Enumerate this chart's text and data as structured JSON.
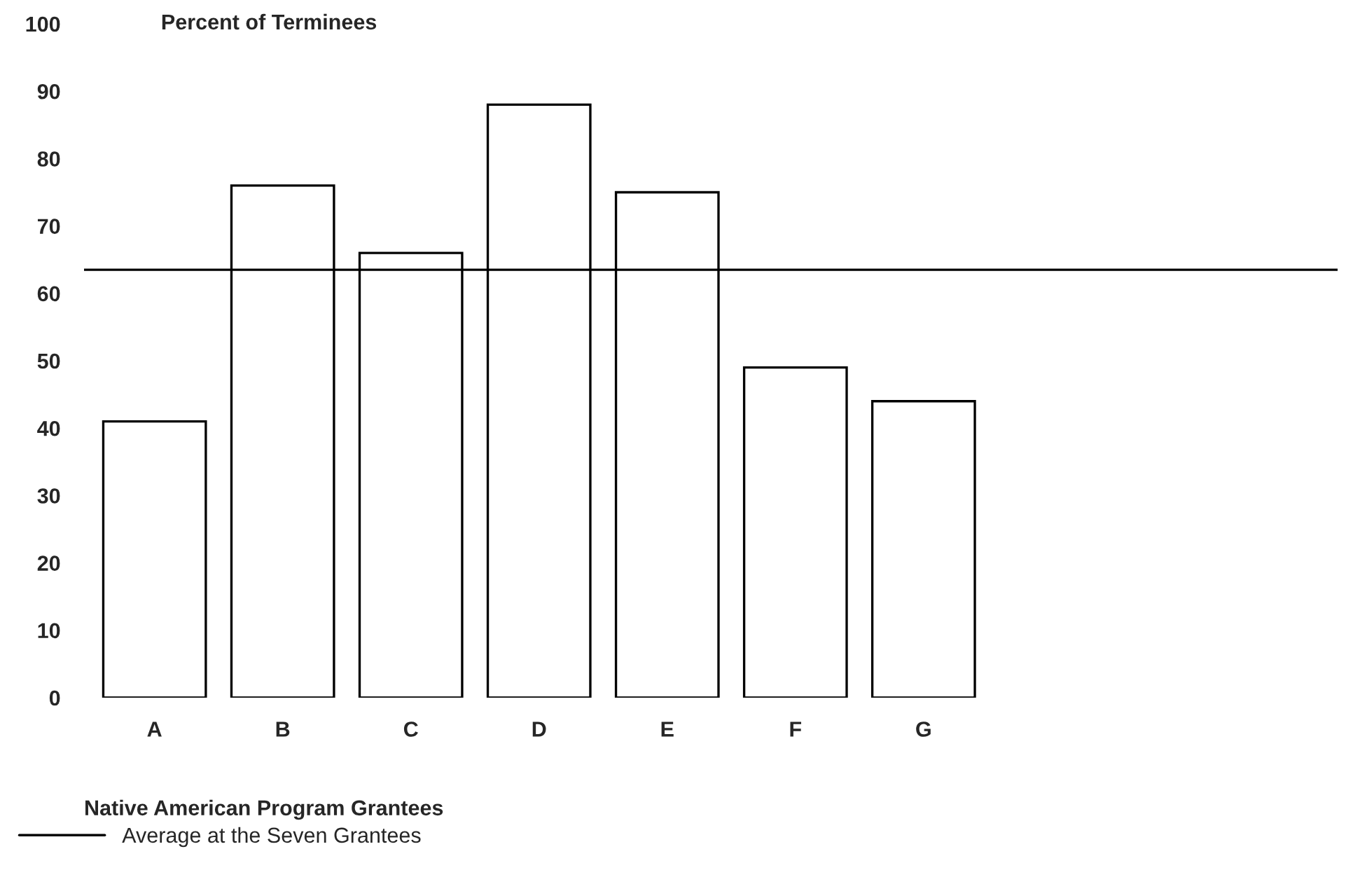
{
  "chart_data": {
    "type": "bar",
    "ylabel": "Percent of Terminees",
    "xlabel": "Native American Program Grantees",
    "categories": [
      "A",
      "B",
      "C",
      "D",
      "E",
      "F",
      "G"
    ],
    "values": [
      41,
      76,
      66,
      88,
      75,
      49,
      44
    ],
    "color": "#ffffff",
    "ylim": [
      0,
      100
    ],
    "yticks": [
      0,
      10,
      20,
      30,
      40,
      50,
      60,
      70,
      80,
      90,
      100
    ],
    "ref_lines": [
      {
        "axis": "y",
        "value": 63.5,
        "label": "Average at the Seven Grantees",
        "color": "#000000"
      }
    ],
    "legend": "bottom left",
    "grid": false
  }
}
